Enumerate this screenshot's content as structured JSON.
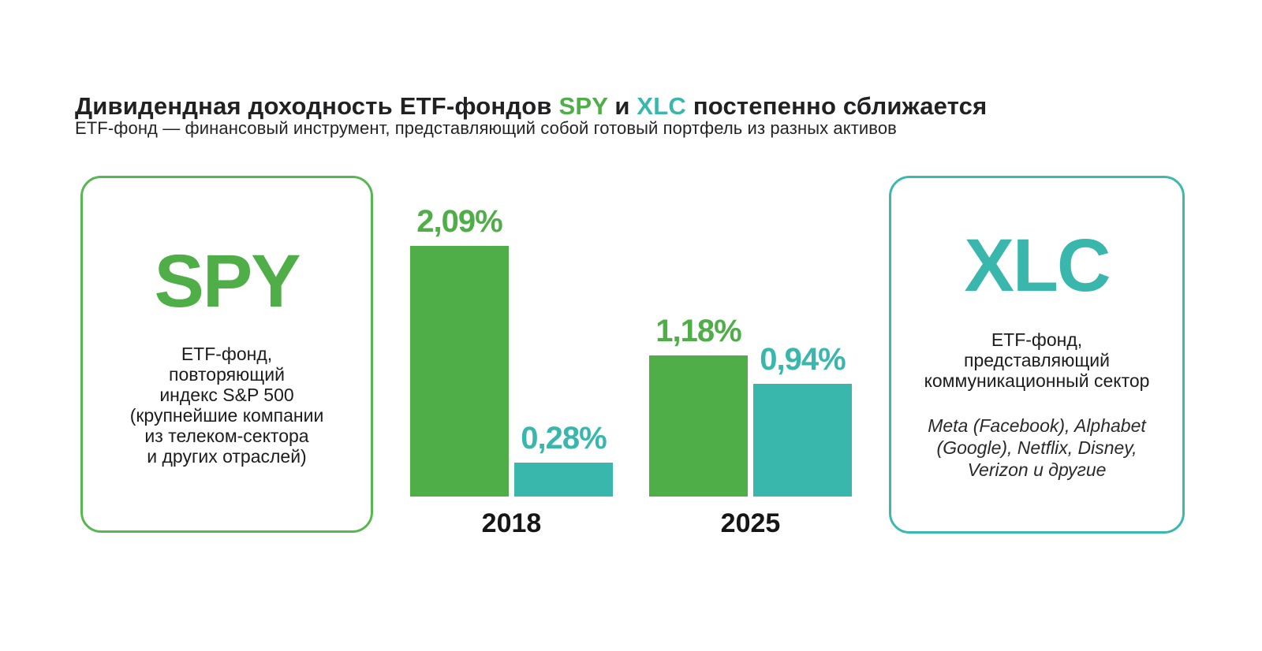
{
  "header": {
    "title_parts": [
      {
        "text": "Дивидендная доходность ETF-фондов "
      },
      {
        "text": "SPY"
      },
      {
        "text": " и "
      },
      {
        "text": "XLC"
      },
      {
        "text": " постепенно сближается"
      }
    ],
    "subtitle": "ETF-фонд — финансовый инструмент, представляющий собой готовый портфель из разных активов"
  },
  "colors": {
    "green": "#4fae47",
    "teal": "#3ab7ad",
    "dark_text": "#212124",
    "green_border": "#57b750",
    "teal_border": "#3cb9ae"
  },
  "spy_card": {
    "ticker": "SPY",
    "description": "ETF-фонд,\nповторяющий\nиндекс S&P 500\n(крупнейшие компании\nиз телеком-сектора\nи других отраслей)"
  },
  "xlc_card": {
    "ticker": "XLC",
    "description": "ETF-фонд,\nпредставляющий\nкоммуникационный сектор",
    "companies": "Meta (Facebook), Alphabet\n(Google), Netflix, Disney,\nVerizon и другие"
  },
  "chart_data": {
    "type": "bar",
    "title": "Дивидендная доходность ETF-фондов SPY и XLC постепенно сближается",
    "categories": [
      "2018",
      "2025"
    ],
    "series": [
      {
        "name": "SPY",
        "color": "#4fae47",
        "values": [
          2.09,
          1.18
        ],
        "value_labels": [
          "2,09%",
          "1,18%"
        ]
      },
      {
        "name": "XLC",
        "color": "#3ab7ad",
        "values": [
          0.28,
          0.94
        ],
        "value_labels": [
          "0,28%",
          "0,94%"
        ]
      }
    ],
    "unit": "%",
    "value_format": "comma-decimal-percent",
    "ylim": [
      0,
      2.3
    ],
    "grid": false,
    "axes_visible": false,
    "legend": "none — series identified by SPY/XLC cards",
    "layout": "grouped vertical bars, value labels above bars, year labels below groups"
  }
}
